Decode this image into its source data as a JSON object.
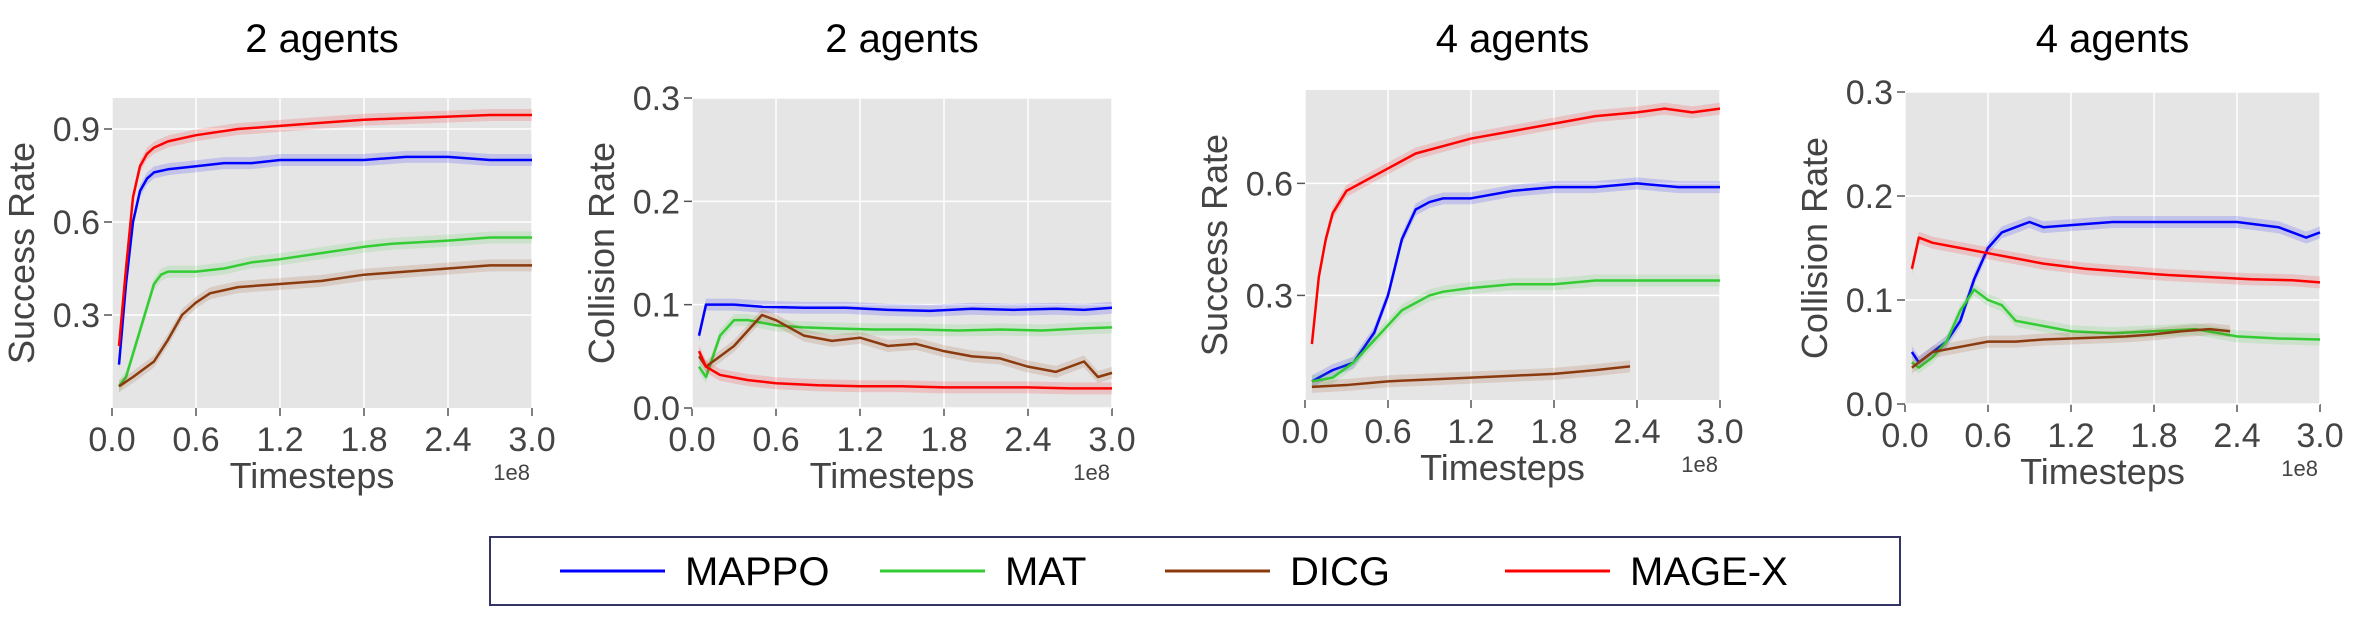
{
  "chart_data": [
    {
      "type": "line",
      "title": "2 agents",
      "xlabel": "Timesteps",
      "ylabel": "Success Rate",
      "x_multiplier_label": "1e8",
      "xlim": [
        0,
        3.0
      ],
      "ylim": [
        0,
        1.0
      ],
      "xticks": [
        "0.0",
        "0.6",
        "1.2",
        "1.8",
        "2.4",
        "3.0"
      ],
      "yticks": [
        {
          "v": 0.3,
          "label": "0.3"
        },
        {
          "v": 0.6,
          "label": "0.6"
        },
        {
          "v": 0.9,
          "label": "0.9"
        }
      ],
      "grid": true,
      "series": [
        {
          "name": "MAPPO",
          "x": [
            0.05,
            0.1,
            0.15,
            0.2,
            0.25,
            0.3,
            0.4,
            0.6,
            0.8,
            1.0,
            1.2,
            1.5,
            1.8,
            2.1,
            2.4,
            2.7,
            3.0
          ],
          "y": [
            0.14,
            0.4,
            0.6,
            0.7,
            0.74,
            0.76,
            0.77,
            0.78,
            0.79,
            0.79,
            0.8,
            0.8,
            0.8,
            0.81,
            0.81,
            0.8,
            0.8
          ]
        },
        {
          "name": "MAT",
          "x": [
            0.05,
            0.1,
            0.2,
            0.3,
            0.35,
            0.4,
            0.6,
            0.8,
            1.0,
            1.2,
            1.5,
            1.8,
            2.0,
            2.4,
            2.7,
            3.0
          ],
          "y": [
            0.07,
            0.1,
            0.25,
            0.4,
            0.43,
            0.44,
            0.44,
            0.45,
            0.47,
            0.48,
            0.5,
            0.52,
            0.53,
            0.54,
            0.55,
            0.55
          ]
        },
        {
          "name": "DICG",
          "x": [
            0.05,
            0.15,
            0.3,
            0.4,
            0.5,
            0.6,
            0.7,
            0.9,
            1.2,
            1.5,
            1.8,
            2.1,
            2.4,
            2.7,
            3.0
          ],
          "y": [
            0.07,
            0.1,
            0.15,
            0.22,
            0.3,
            0.34,
            0.37,
            0.39,
            0.4,
            0.41,
            0.43,
            0.44,
            0.45,
            0.46,
            0.46
          ]
        },
        {
          "name": "MAGE-X",
          "x": [
            0.05,
            0.1,
            0.15,
            0.2,
            0.25,
            0.3,
            0.4,
            0.6,
            0.9,
            1.2,
            1.5,
            1.8,
            2.1,
            2.4,
            2.7,
            3.0
          ],
          "y": [
            0.2,
            0.45,
            0.68,
            0.78,
            0.82,
            0.84,
            0.86,
            0.88,
            0.9,
            0.91,
            0.92,
            0.93,
            0.935,
            0.94,
            0.945,
            0.945
          ]
        }
      ]
    },
    {
      "type": "line",
      "title": "2 agents",
      "xlabel": "Timesteps",
      "ylabel": "Collision Rate",
      "x_multiplier_label": "1e8",
      "xlim": [
        0,
        3.0
      ],
      "ylim": [
        0,
        0.3
      ],
      "xticks": [
        "0.0",
        "0.6",
        "1.2",
        "1.8",
        "2.4",
        "3.0"
      ],
      "yticks": [
        {
          "v": 0.0,
          "label": "0.0"
        },
        {
          "v": 0.1,
          "label": "0.1"
        },
        {
          "v": 0.2,
          "label": "0.2"
        },
        {
          "v": 0.3,
          "label": "0.3"
        }
      ],
      "grid": true,
      "series": [
        {
          "name": "MAPPO",
          "x": [
            0.05,
            0.1,
            0.2,
            0.3,
            0.5,
            0.8,
            1.1,
            1.4,
            1.7,
            2.0,
            2.3,
            2.6,
            2.8,
            3.0
          ],
          "y": [
            0.07,
            0.1,
            0.1,
            0.1,
            0.098,
            0.097,
            0.097,
            0.095,
            0.094,
            0.096,
            0.095,
            0.096,
            0.095,
            0.097
          ]
        },
        {
          "name": "MAT",
          "x": [
            0.05,
            0.1,
            0.15,
            0.2,
            0.3,
            0.4,
            0.6,
            0.8,
            1.0,
            1.3,
            1.6,
            1.9,
            2.2,
            2.5,
            2.8,
            3.0
          ],
          "y": [
            0.04,
            0.03,
            0.05,
            0.07,
            0.085,
            0.085,
            0.08,
            0.078,
            0.077,
            0.076,
            0.076,
            0.075,
            0.076,
            0.075,
            0.077,
            0.078
          ]
        },
        {
          "name": "DICG",
          "x": [
            0.05,
            0.1,
            0.2,
            0.3,
            0.4,
            0.5,
            0.6,
            0.8,
            1.0,
            1.2,
            1.4,
            1.6,
            1.8,
            2.0,
            2.2,
            2.4,
            2.6,
            2.8,
            2.9,
            3.0
          ],
          "y": [
            0.05,
            0.04,
            0.05,
            0.06,
            0.075,
            0.09,
            0.085,
            0.07,
            0.065,
            0.068,
            0.06,
            0.062,
            0.055,
            0.05,
            0.048,
            0.04,
            0.035,
            0.045,
            0.03,
            0.034
          ]
        },
        {
          "name": "MAGE-X",
          "x": [
            0.05,
            0.1,
            0.2,
            0.4,
            0.6,
            0.9,
            1.2,
            1.5,
            1.8,
            2.1,
            2.4,
            2.7,
            3.0
          ],
          "y": [
            0.055,
            0.04,
            0.032,
            0.027,
            0.024,
            0.022,
            0.021,
            0.021,
            0.02,
            0.02,
            0.02,
            0.019,
            0.019
          ]
        }
      ]
    },
    {
      "type": "line",
      "title": "4 agents",
      "xlabel": "Timesteps",
      "ylabel": "Success Rate",
      "x_multiplier_label": "1e8",
      "xlim": [
        0,
        3.0
      ],
      "ylim": [
        0.02,
        0.85
      ],
      "xticks": [
        "0.0",
        "0.6",
        "1.2",
        "1.8",
        "2.4",
        "3.0"
      ],
      "yticks": [
        {
          "v": 0.3,
          "label": "0.3"
        },
        {
          "v": 0.6,
          "label": "0.6"
        }
      ],
      "grid": true,
      "series": [
        {
          "name": "MAPPO",
          "x": [
            0.05,
            0.2,
            0.35,
            0.5,
            0.6,
            0.7,
            0.8,
            0.9,
            1.0,
            1.2,
            1.5,
            1.8,
            2.1,
            2.4,
            2.7,
            3.0
          ],
          "y": [
            0.07,
            0.1,
            0.12,
            0.2,
            0.3,
            0.45,
            0.53,
            0.55,
            0.56,
            0.56,
            0.58,
            0.59,
            0.59,
            0.6,
            0.59,
            0.59
          ]
        },
        {
          "name": "MAT",
          "x": [
            0.05,
            0.2,
            0.35,
            0.5,
            0.6,
            0.7,
            0.8,
            0.9,
            1.0,
            1.2,
            1.5,
            1.8,
            2.1,
            2.4,
            2.7,
            3.0
          ],
          "y": [
            0.07,
            0.08,
            0.12,
            0.18,
            0.22,
            0.26,
            0.28,
            0.3,
            0.31,
            0.32,
            0.33,
            0.33,
            0.34,
            0.34,
            0.34,
            0.34
          ]
        },
        {
          "name": "DICG",
          "x": [
            0.05,
            0.3,
            0.6,
            0.9,
            1.2,
            1.5,
            1.8,
            2.1,
            2.35
          ],
          "y": [
            0.055,
            0.06,
            0.07,
            0.075,
            0.08,
            0.085,
            0.09,
            0.1,
            0.11
          ]
        },
        {
          "name": "MAGE-X",
          "x": [
            0.05,
            0.1,
            0.15,
            0.2,
            0.3,
            0.4,
            0.6,
            0.8,
            1.0,
            1.2,
            1.5,
            1.8,
            2.1,
            2.4,
            2.6,
            2.8,
            3.0
          ],
          "y": [
            0.17,
            0.35,
            0.45,
            0.52,
            0.58,
            0.6,
            0.64,
            0.68,
            0.7,
            0.72,
            0.74,
            0.76,
            0.78,
            0.79,
            0.8,
            0.79,
            0.8
          ]
        }
      ]
    },
    {
      "type": "line",
      "title": "4 agents",
      "xlabel": "Timesteps",
      "ylabel": "Collision Rate",
      "x_multiplier_label": "1e8",
      "xlim": [
        0,
        3.0
      ],
      "ylim": [
        0,
        0.3
      ],
      "xticks": [
        "0.0",
        "0.6",
        "1.2",
        "1.8",
        "2.4",
        "3.0"
      ],
      "yticks": [
        {
          "v": 0.0,
          "label": "0.0"
        },
        {
          "v": 0.1,
          "label": "0.1"
        },
        {
          "v": 0.2,
          "label": "0.2"
        },
        {
          "v": 0.3,
          "label": "0.3"
        }
      ],
      "grid": true,
      "series": [
        {
          "name": "MAPPO",
          "x": [
            0.05,
            0.1,
            0.2,
            0.3,
            0.4,
            0.5,
            0.6,
            0.7,
            0.8,
            0.9,
            1.0,
            1.2,
            1.5,
            1.8,
            2.1,
            2.4,
            2.7,
            2.9,
            3.0
          ],
          "y": [
            0.05,
            0.04,
            0.05,
            0.06,
            0.08,
            0.12,
            0.15,
            0.165,
            0.17,
            0.175,
            0.17,
            0.172,
            0.175,
            0.175,
            0.175,
            0.175,
            0.17,
            0.16,
            0.165
          ]
        },
        {
          "name": "MAT",
          "x": [
            0.05,
            0.1,
            0.2,
            0.3,
            0.4,
            0.5,
            0.6,
            0.7,
            0.8,
            1.0,
            1.2,
            1.5,
            1.8,
            2.1,
            2.4,
            2.7,
            3.0
          ],
          "y": [
            0.04,
            0.035,
            0.045,
            0.06,
            0.09,
            0.11,
            0.1,
            0.095,
            0.08,
            0.075,
            0.07,
            0.068,
            0.07,
            0.072,
            0.065,
            0.063,
            0.062
          ]
        },
        {
          "name": "DICG",
          "x": [
            0.05,
            0.2,
            0.4,
            0.6,
            0.8,
            1.0,
            1.2,
            1.4,
            1.6,
            1.8,
            2.0,
            2.2,
            2.35
          ],
          "y": [
            0.035,
            0.05,
            0.055,
            0.06,
            0.06,
            0.062,
            0.063,
            0.064,
            0.065,
            0.067,
            0.07,
            0.072,
            0.07
          ]
        },
        {
          "name": "MAGE-X",
          "x": [
            0.05,
            0.1,
            0.2,
            0.4,
            0.6,
            0.8,
            1.0,
            1.3,
            1.6,
            1.9,
            2.2,
            2.5,
            2.8,
            3.0
          ],
          "y": [
            0.13,
            0.16,
            0.155,
            0.15,
            0.145,
            0.14,
            0.135,
            0.13,
            0.127,
            0.124,
            0.122,
            0.12,
            0.119,
            0.117
          ]
        }
      ]
    }
  ],
  "legend": [
    {
      "name": "MAPPO",
      "color": "#0000ff"
    },
    {
      "name": "MAT",
      "color": "#33cc33"
    },
    {
      "name": "DICG",
      "color": "#8b3a0e"
    },
    {
      "name": "MAGE-X",
      "color": "#ff0000"
    }
  ]
}
